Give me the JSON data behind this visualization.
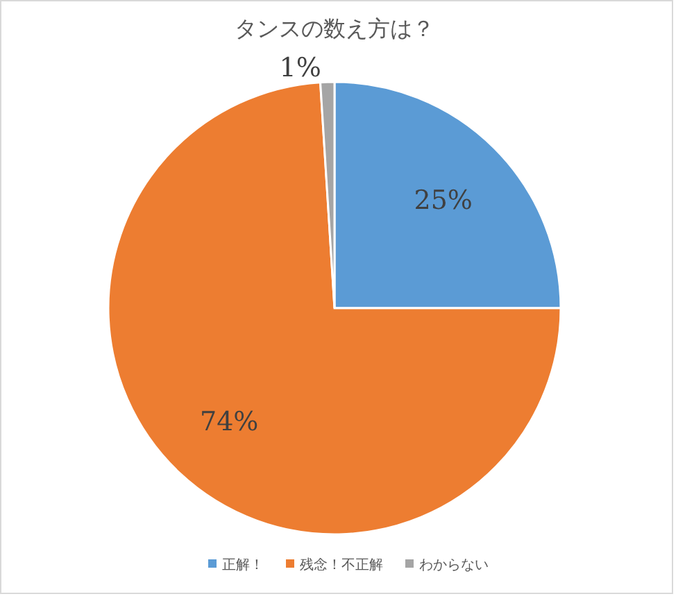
{
  "chart_data": {
    "type": "pie",
    "title": "タンスの数え方は？",
    "categories": [
      "正解！",
      "残念！不正解",
      "わからない"
    ],
    "values": [
      25,
      74,
      1
    ],
    "colors": [
      "#5b9bd5",
      "#ed7d31",
      "#a5a5a5"
    ],
    "value_labels": [
      "25%",
      "74%",
      "1%"
    ],
    "legend": "bottom"
  }
}
